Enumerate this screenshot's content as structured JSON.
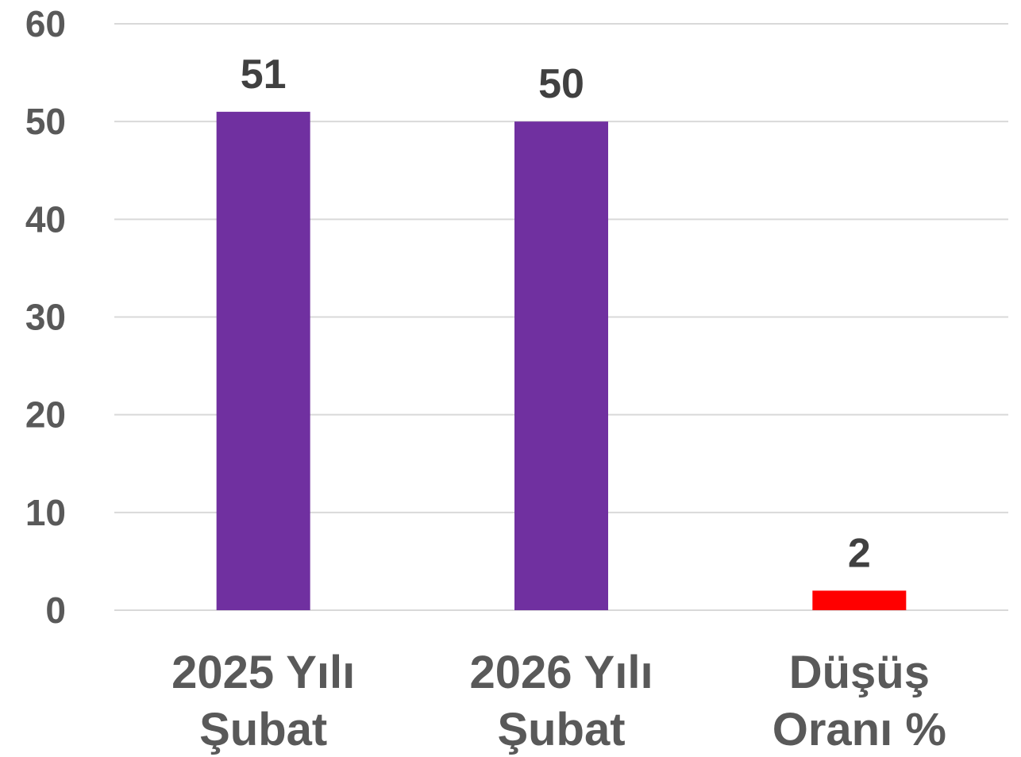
{
  "chart_data": {
    "type": "bar",
    "title": "",
    "xlabel": "",
    "ylabel": "",
    "categories": [
      [
        "2025 Yılı",
        "Şubat"
      ],
      [
        "2026 Yılı",
        "Şubat"
      ],
      [
        "Düşüş",
        "Oranı %"
      ]
    ],
    "values": [
      51,
      50,
      2
    ],
    "data_labels": [
      "51",
      "50",
      "2"
    ],
    "bar_colors": [
      "#7030a0",
      "#7030a0",
      "#ff0000"
    ],
    "ylim": [
      0,
      60
    ],
    "yticks": [
      0,
      10,
      20,
      30,
      40,
      50,
      60
    ],
    "ytick_labels": [
      "0",
      "10",
      "20",
      "30",
      "40",
      "50",
      "60"
    ],
    "grid": true,
    "legend": "none"
  }
}
